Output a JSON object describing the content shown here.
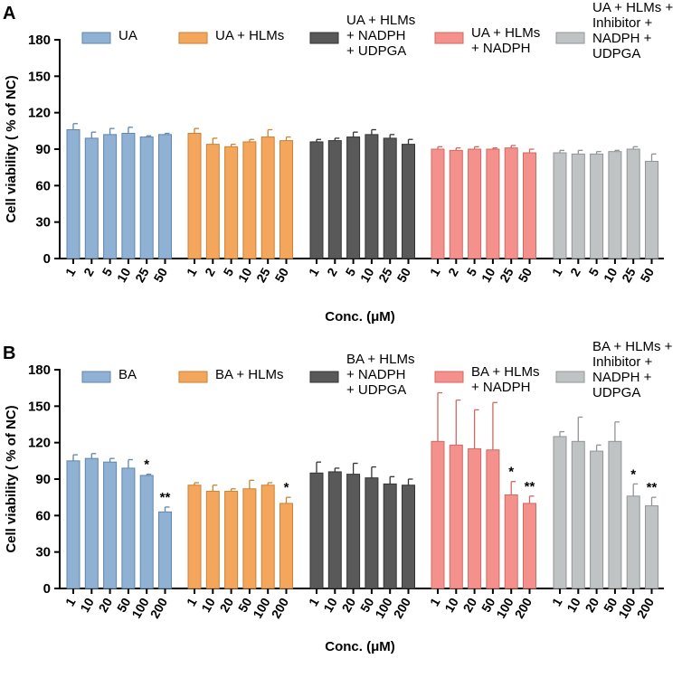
{
  "chart_data": [
    {
      "panel": "A",
      "type": "bar",
      "ylabel": "Cell viability ( % of NC)",
      "xlabel": "Conc. (μM)",
      "ylim": [
        0,
        180
      ],
      "yticks": [
        0,
        30,
        60,
        90,
        120,
        150,
        180
      ],
      "categories": [
        "1",
        "2",
        "5",
        "10",
        "25",
        "50"
      ],
      "series": [
        {
          "name": "UA",
          "legend_lines": [
            "UA"
          ],
          "color": "#8fb1d4",
          "edge": "#5f86ad",
          "values": [
            106,
            99,
            102,
            103,
            100,
            102
          ],
          "errors": [
            5,
            5,
            5,
            5,
            1,
            1
          ],
          "sig": [
            "",
            "",
            "",
            "",
            "",
            ""
          ]
        },
        {
          "name": "UA + HLMs",
          "legend_lines": [
            "UA + HLMs"
          ],
          "color": "#f4a75c",
          "edge": "#c98236",
          "values": [
            103,
            94,
            92,
            96,
            100,
            97
          ],
          "errors": [
            4,
            5,
            2,
            2,
            6,
            3
          ],
          "sig": [
            "",
            "",
            "",
            "",
            "",
            ""
          ]
        },
        {
          "name": "UA + HLMs + NADPH + UDPGA",
          "legend_lines": [
            "UA + HLMs",
            "+ NADPH",
            "+ UDPGA"
          ],
          "color": "#595959",
          "edge": "#333333",
          "values": [
            96,
            97,
            100,
            102,
            99,
            94
          ],
          "errors": [
            2,
            2,
            4,
            4,
            3,
            4
          ],
          "sig": [
            "",
            "",
            "",
            "",
            "",
            ""
          ]
        },
        {
          "name": "UA + HLMs + NADPH",
          "legend_lines": [
            "UA + HLMs",
            "+ NADPH"
          ],
          "color": "#f4918c",
          "edge": "#d06962",
          "values": [
            90,
            89,
            90,
            90,
            91,
            87
          ],
          "errors": [
            2,
            2,
            2,
            1,
            2,
            3
          ],
          "sig": [
            "",
            "",
            "",
            "",
            "",
            ""
          ]
        },
        {
          "name": "UA + HLMs + Inhibitor + NADPH + UDPGA",
          "legend_lines": [
            "UA + HLMs +",
            "Inhibitor +",
            "NADPH +",
            "UDPGA"
          ],
          "color": "#c0c3c4",
          "edge": "#909496",
          "values": [
            87,
            86,
            86,
            88,
            90,
            80
          ],
          "errors": [
            2,
            3,
            2,
            1,
            2,
            6
          ],
          "sig": [
            "",
            "",
            "",
            "",
            "",
            ""
          ]
        }
      ]
    },
    {
      "panel": "B",
      "type": "bar",
      "ylabel": "Cell viability ( % of NC)",
      "xlabel": "Conc. (μM)",
      "ylim": [
        0,
        180
      ],
      "yticks": [
        0,
        30,
        60,
        90,
        120,
        150,
        180
      ],
      "categories": [
        "1",
        "10",
        "20",
        "50",
        "100",
        "200"
      ],
      "series": [
        {
          "name": "BA",
          "legend_lines": [
            "BA"
          ],
          "color": "#8fb1d4",
          "edge": "#5f86ad",
          "values": [
            105,
            107,
            104,
            99,
            93,
            63
          ],
          "errors": [
            5,
            4,
            3,
            7,
            1,
            4
          ],
          "sig": [
            "",
            "",
            "",
            "",
            "*",
            "**"
          ]
        },
        {
          "name": "BA + HLMs",
          "legend_lines": [
            "BA + HLMs"
          ],
          "color": "#f4a75c",
          "edge": "#c98236",
          "values": [
            85,
            80,
            80,
            82,
            85,
            70
          ],
          "errors": [
            2,
            5,
            2,
            7,
            2,
            5
          ],
          "sig": [
            "",
            "",
            "",
            "",
            "",
            "*"
          ]
        },
        {
          "name": "BA + HLMs + NADPH + UDPGA",
          "legend_lines": [
            "BA + HLMs",
            "+ NADPH",
            "+ UDPGA"
          ],
          "color": "#595959",
          "edge": "#333333",
          "values": [
            95,
            96,
            94,
            91,
            86,
            85
          ],
          "errors": [
            9,
            3,
            9,
            9,
            6,
            5
          ],
          "sig": [
            "",
            "",
            "",
            "",
            "",
            ""
          ]
        },
        {
          "name": "BA + HLMs + NADPH",
          "legend_lines": [
            "BA + HLMs",
            "+ NADPH"
          ],
          "color": "#f4918c",
          "edge": "#d06962",
          "values": [
            121,
            118,
            115,
            114,
            77,
            70
          ],
          "errors": [
            40,
            37,
            32,
            39,
            11,
            6
          ],
          "sig": [
            "",
            "",
            "",
            "",
            "*",
            "**"
          ]
        },
        {
          "name": "BA + HLMs + Inhibitor + NADPH + UDPGA",
          "legend_lines": [
            "BA + HLMs +",
            "Inhibitor +",
            "NADPH +",
            "UDPGA"
          ],
          "color": "#c0c3c4",
          "edge": "#909496",
          "values": [
            125,
            121,
            113,
            121,
            76,
            68
          ],
          "errors": [
            4,
            20,
            5,
            16,
            10,
            7
          ],
          "sig": [
            "",
            "",
            "",
            "",
            "*",
            "**"
          ]
        }
      ]
    }
  ]
}
